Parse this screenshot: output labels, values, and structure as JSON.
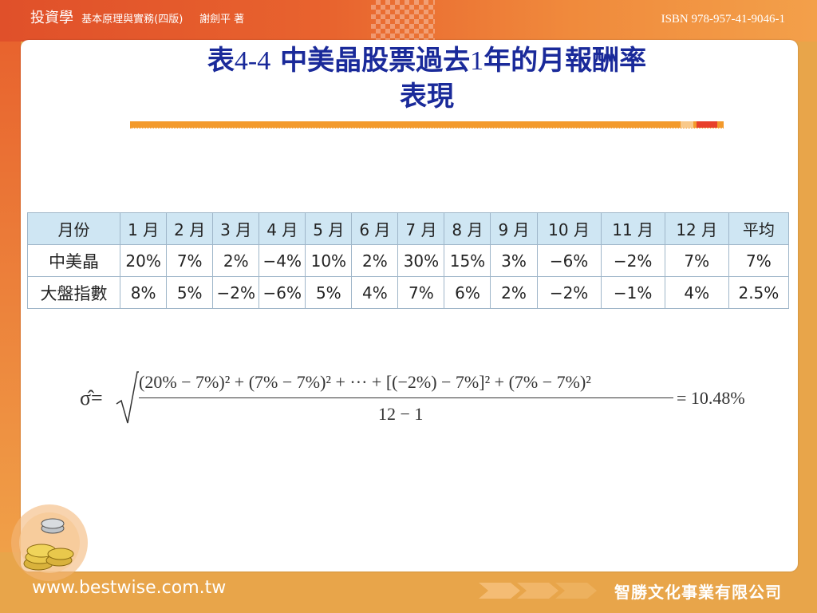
{
  "header": {
    "book_main": "投資學",
    "book_sub": "基本原理與實務(四版)",
    "author": "謝劍平 著",
    "isbn": "ISBN 978-957-41-9046-1"
  },
  "slide": {
    "title_prefix": "表",
    "title_number": "4-4",
    "title_text_1": "中美晶股票過去",
    "title_number_2": "1",
    "title_text_2": "年的月報酬率",
    "title_line2": "表現"
  },
  "table": {
    "headers": [
      "月份",
      "1 月",
      "2 月",
      "3 月",
      "4 月",
      "5 月",
      "6 月",
      "7 月",
      "8 月",
      "9 月",
      "10 月",
      "11 月",
      "12 月",
      "平均"
    ],
    "rows": [
      [
        "中美晶",
        "20%",
        "7%",
        "2%",
        "−4%",
        "10%",
        "2%",
        "30%",
        "15%",
        "3%",
        "−6%",
        "−2%",
        "7%",
        "7%"
      ],
      [
        "大盤指數",
        "8%",
        "5%",
        "−2%",
        "−6%",
        "5%",
        "4%",
        "7%",
        "6%",
        "2%",
        "−2%",
        "−1%",
        "4%",
        "2.5%"
      ]
    ]
  },
  "formula": {
    "lhs": "σ̂=",
    "numerator": "(20% − 7%)² + (7% − 7%)² + ··· + [(−2%) − 7%]² + (7% − 7%)²",
    "denominator": "12 − 1",
    "result": "= 10.48%"
  },
  "footer": {
    "url": "www.bestwise.com.tw",
    "publisher": "智勝文化事業有限公司"
  },
  "colors": {
    "title": "#1a2a9a",
    "accent": "#f39a2c",
    "header_bar": "#e0502a",
    "table_header_bg": "#cfe6f3"
  }
}
